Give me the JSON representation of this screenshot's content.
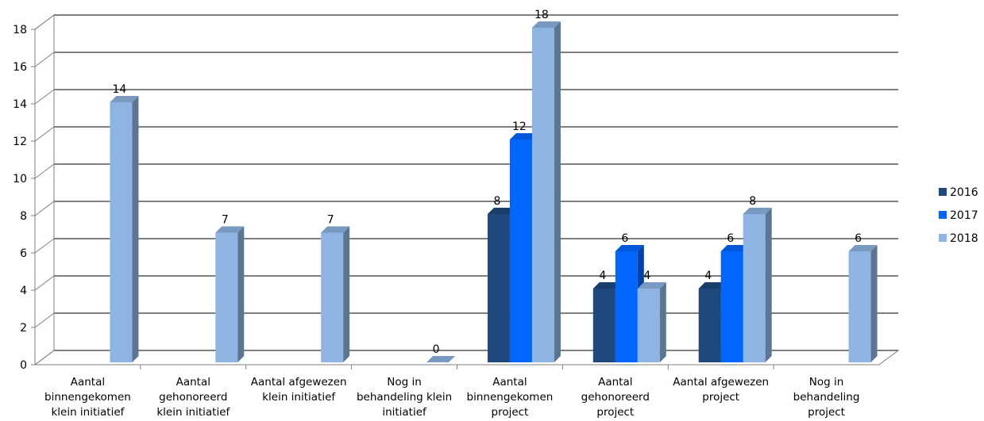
{
  "chart_data": {
    "type": "bar",
    "style": "3d-clustered-column",
    "categories": [
      [
        "Aantal",
        "binnengekomen",
        "klein initiatief"
      ],
      [
        "Aantal",
        "gehonoreerd",
        "klein initiatief"
      ],
      [
        "Aantal afgewezen",
        "klein initiatief"
      ],
      [
        "Nog in",
        "behandeling klein",
        "initiatief"
      ],
      [
        "Aantal",
        "binnengekomen",
        "project"
      ],
      [
        "Aantal",
        "gehonoreerd",
        "project"
      ],
      [
        "Aantal afgewezen",
        "project"
      ],
      [
        "Nog in",
        "behandeling",
        "project"
      ]
    ],
    "series": [
      {
        "name": "2016",
        "color": "#1f497d",
        "values": [
          null,
          null,
          null,
          null,
          8,
          4,
          4,
          null
        ]
      },
      {
        "name": "2017",
        "color": "#0066ff",
        "values": [
          null,
          null,
          null,
          null,
          12,
          6,
          6,
          null
        ]
      },
      {
        "name": "2018",
        "color": "#8db4e2",
        "values": [
          14,
          7,
          7,
          0,
          18,
          4,
          8,
          6
        ]
      }
    ],
    "ylim": [
      0,
      18
    ],
    "yticks": [
      "0",
      "2",
      "4",
      "6",
      "8",
      "10",
      "12",
      "14",
      "16",
      "18"
    ],
    "grid": true,
    "legend": "right"
  }
}
